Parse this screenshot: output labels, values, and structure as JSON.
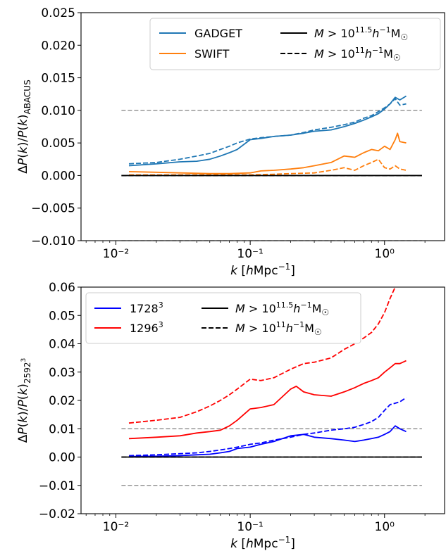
{
  "chart_data": [
    {
      "type": "line",
      "xlabel": "k [hMpc⁻¹]",
      "ylabel": "ΔP(k)/P(k)_ABACUS",
      "xscale": "log",
      "xlim": [
        0.0055,
        2.8
      ],
      "ylim": [
        -0.01,
        0.025
      ],
      "xticks": [
        0.01,
        0.1,
        1
      ],
      "xtick_labels": [
        "10⁻²",
        "10⁻¹",
        "10⁰"
      ],
      "yticks": [
        -0.01,
        -0.005,
        0.0,
        0.005,
        0.01,
        0.015,
        0.02,
        0.025
      ],
      "ytick_labels": [
        "−0.010",
        "−0.005",
        "0.000",
        "0.005",
        "0.010",
        "0.015",
        "0.020",
        "0.025"
      ],
      "reference_lines": [
        0.01,
        -0.01
      ],
      "zero_line": {
        "x": [
          0.011,
          1.9
        ],
        "y": 0
      },
      "legend": {
        "placement": "top-right",
        "entries": [
          {
            "label": "GADGET",
            "color": "#1f77b4",
            "style": "solid"
          },
          {
            "label": "M > 10^11.5 h⁻¹ M☉",
            "color": "#000000",
            "style": "solid"
          },
          {
            "label": "SWIFT",
            "color": "#ff7f0e",
            "style": "solid"
          },
          {
            "label": "M > 10^11 h⁻¹ M☉",
            "color": "#000000",
            "style": "dashed"
          }
        ]
      },
      "series": [
        {
          "name": "GADGET",
          "color": "#1f77b4",
          "style": "solid",
          "x": [
            0.0125,
            0.02,
            0.03,
            0.04,
            0.05,
            0.06,
            0.07,
            0.08,
            0.1,
            0.12,
            0.15,
            0.2,
            0.25,
            0.3,
            0.4,
            0.5,
            0.6,
            0.7,
            0.8,
            0.9,
            1.0,
            1.1,
            1.2,
            1.3,
            1.45
          ],
          "y": [
            0.0015,
            0.0018,
            0.0021,
            0.0022,
            0.0025,
            0.003,
            0.0035,
            0.004,
            0.0055,
            0.0057,
            0.006,
            0.0062,
            0.0065,
            0.0068,
            0.007,
            0.0075,
            0.008,
            0.0085,
            0.009,
            0.0095,
            0.0102,
            0.011,
            0.012,
            0.0116,
            0.0122
          ]
        },
        {
          "name": "GADGET",
          "color": "#1f77b4",
          "style": "dashed",
          "x": [
            0.0125,
            0.02,
            0.03,
            0.04,
            0.05,
            0.06,
            0.07,
            0.08,
            0.1,
            0.12,
            0.15,
            0.2,
            0.25,
            0.3,
            0.4,
            0.5,
            0.6,
            0.7,
            0.8,
            0.9,
            1.0,
            1.1,
            1.2,
            1.3,
            1.45
          ],
          "y": [
            0.0018,
            0.002,
            0.0025,
            0.003,
            0.0034,
            0.004,
            0.0045,
            0.005,
            0.0056,
            0.0058,
            0.006,
            0.0062,
            0.0066,
            0.007,
            0.0074,
            0.0078,
            0.0082,
            0.0088,
            0.0092,
            0.0098,
            0.0104,
            0.011,
            0.0118,
            0.0108,
            0.011
          ]
        },
        {
          "name": "SWIFT",
          "color": "#ff7f0e",
          "style": "solid",
          "x": [
            0.0125,
            0.02,
            0.03,
            0.05,
            0.07,
            0.1,
            0.12,
            0.15,
            0.2,
            0.25,
            0.3,
            0.4,
            0.5,
            0.6,
            0.7,
            0.8,
            0.9,
            1.0,
            1.1,
            1.2,
            1.25,
            1.3,
            1.45
          ],
          "y": [
            0.0006,
            0.0005,
            0.0004,
            0.0003,
            0.0003,
            0.0004,
            0.0007,
            0.0008,
            0.001,
            0.0012,
            0.0015,
            0.002,
            0.003,
            0.0028,
            0.0035,
            0.004,
            0.0038,
            0.0045,
            0.004,
            0.0055,
            0.0065,
            0.0052,
            0.005
          ]
        },
        {
          "name": "SWIFT",
          "color": "#ff7f0e",
          "style": "dashed",
          "x": [
            0.0125,
            0.03,
            0.05,
            0.1,
            0.15,
            0.2,
            0.3,
            0.4,
            0.5,
            0.6,
            0.7,
            0.8,
            0.9,
            1.0,
            1.1,
            1.2,
            1.3,
            1.45
          ],
          "y": [
            0.0001,
            0.0001,
            0.0001,
            0.0001,
            0.0002,
            0.0003,
            0.0004,
            0.0008,
            0.0012,
            0.0008,
            0.0015,
            0.002,
            0.0025,
            0.0012,
            0.001,
            0.0015,
            0.001,
            0.0008
          ]
        }
      ]
    },
    {
      "type": "line",
      "xlabel": "k [hMpc⁻¹]",
      "ylabel": "ΔP(k)/P(k)_2592³",
      "xscale": "log",
      "xlim": [
        0.0055,
        2.8
      ],
      "ylim": [
        -0.02,
        0.06
      ],
      "xticks": [
        0.01,
        0.1,
        1
      ],
      "xtick_labels": [
        "10⁻²",
        "10⁻¹",
        "10⁰"
      ],
      "yticks": [
        -0.02,
        -0.01,
        0.0,
        0.01,
        0.02,
        0.03,
        0.04,
        0.05,
        0.06
      ],
      "ytick_labels": [
        "−0.02",
        "−0.01",
        "0.00",
        "0.01",
        "0.02",
        "0.03",
        "0.04",
        "0.05",
        "0.06"
      ],
      "reference_lines": [
        0.01,
        -0.01
      ],
      "zero_line": {
        "x": [
          0.011,
          1.9
        ],
        "y": 0
      },
      "legend": {
        "placement": "top-left",
        "entries": [
          {
            "label": "1728³",
            "color": "#0000ff",
            "style": "solid"
          },
          {
            "label": "M > 10^11.5 h⁻¹ M☉",
            "color": "#000000",
            "style": "solid"
          },
          {
            "label": "1296³",
            "color": "#ff0000",
            "style": "solid"
          },
          {
            "label": "M > 10^11 h⁻¹ M☉",
            "color": "#000000",
            "style": "dashed"
          }
        ]
      },
      "series": [
        {
          "name": "1728³",
          "color": "#0000ff",
          "style": "solid",
          "x": [
            0.0125,
            0.02,
            0.03,
            0.04,
            0.05,
            0.06,
            0.07,
            0.08,
            0.1,
            0.12,
            0.15,
            0.2,
            0.25,
            0.3,
            0.4,
            0.5,
            0.6,
            0.7,
            0.8,
            0.9,
            1.0,
            1.1,
            1.2,
            1.3,
            1.45
          ],
          "y": [
            0.0002,
            0.0003,
            0.0005,
            0.0008,
            0.001,
            0.0015,
            0.002,
            0.003,
            0.0035,
            0.0045,
            0.0055,
            0.0075,
            0.008,
            0.007,
            0.0065,
            0.006,
            0.0055,
            0.006,
            0.0065,
            0.007,
            0.008,
            0.009,
            0.011,
            0.01,
            0.009
          ]
        },
        {
          "name": "1728³",
          "color": "#0000ff",
          "style": "dashed",
          "x": [
            0.0125,
            0.02,
            0.03,
            0.04,
            0.05,
            0.06,
            0.07,
            0.08,
            0.1,
            0.12,
            0.15,
            0.2,
            0.25,
            0.3,
            0.4,
            0.5,
            0.6,
            0.7,
            0.8,
            0.9,
            1.0,
            1.1,
            1.2,
            1.3,
            1.45
          ],
          "y": [
            0.0005,
            0.0008,
            0.0012,
            0.0015,
            0.002,
            0.0025,
            0.003,
            0.0035,
            0.0045,
            0.005,
            0.006,
            0.007,
            0.008,
            0.0085,
            0.0095,
            0.01,
            0.0105,
            0.0115,
            0.0125,
            0.014,
            0.0165,
            0.0185,
            0.019,
            0.0195,
            0.021
          ]
        },
        {
          "name": "1296³",
          "color": "#ff0000",
          "style": "solid",
          "x": [
            0.0125,
            0.02,
            0.03,
            0.04,
            0.05,
            0.06,
            0.07,
            0.08,
            0.1,
            0.12,
            0.15,
            0.2,
            0.22,
            0.25,
            0.3,
            0.4,
            0.5,
            0.6,
            0.7,
            0.8,
            0.9,
            1.0,
            1.1,
            1.2,
            1.3,
            1.45
          ],
          "y": [
            0.0065,
            0.007,
            0.0075,
            0.0085,
            0.009,
            0.0095,
            0.011,
            0.013,
            0.017,
            0.0175,
            0.0185,
            0.024,
            0.025,
            0.023,
            0.022,
            0.0215,
            0.023,
            0.0245,
            0.026,
            0.027,
            0.028,
            0.03,
            0.0315,
            0.033,
            0.033,
            0.034
          ]
        },
        {
          "name": "1296³",
          "color": "#ff0000",
          "style": "dashed",
          "x": [
            0.0125,
            0.02,
            0.03,
            0.04,
            0.05,
            0.06,
            0.07,
            0.08,
            0.1,
            0.12,
            0.15,
            0.2,
            0.25,
            0.3,
            0.4,
            0.5,
            0.6,
            0.7,
            0.8,
            0.9,
            1.0,
            1.1,
            1.2,
            1.3,
            1.45
          ],
          "y": [
            0.012,
            0.013,
            0.014,
            0.016,
            0.018,
            0.02,
            0.022,
            0.024,
            0.0275,
            0.027,
            0.028,
            0.031,
            0.033,
            0.0335,
            0.035,
            0.038,
            0.04,
            0.042,
            0.044,
            0.047,
            0.051,
            0.056,
            0.06,
            0.064,
            0.07
          ]
        }
      ]
    }
  ]
}
